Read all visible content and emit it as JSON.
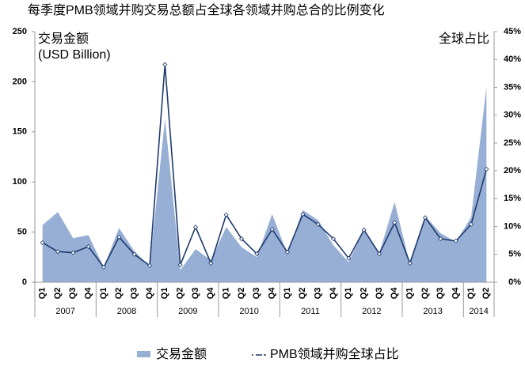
{
  "chart_data": {
    "type": "area-line",
    "title": "每季度PMB领域并购交易总额占全球各领域并购总合的比例变化",
    "y_label": [
      "交易金额",
      "(USD Billion)"
    ],
    "y2_label": "全球占比",
    "groups": [
      {
        "label": "2007",
        "categories": [
          "Q1",
          "Q2",
          "Q3",
          "Q4"
        ]
      },
      {
        "label": "2008",
        "categories": [
          "Q1",
          "Q2",
          "Q3",
          "Q4"
        ]
      },
      {
        "label": "2009",
        "categories": [
          "Q1",
          "Q2",
          "Q3",
          "Q4"
        ]
      },
      {
        "label": "2010",
        "categories": [
          "Q1",
          "Q2",
          "Q3",
          "Q4"
        ]
      },
      {
        "label": "2011",
        "categories": [
          "Q1",
          "Q2",
          "Q3",
          "Q4"
        ]
      },
      {
        "label": "2012",
        "categories": [
          "Q1",
          "Q2",
          "Q3",
          "Q4"
        ]
      },
      {
        "label": "2013",
        "categories": [
          "Q1",
          "Q2",
          "Q3",
          "Q4"
        ]
      },
      {
        "label": "2014",
        "categories": [
          "Q1",
          "Q2"
        ]
      }
    ],
    "series": [
      {
        "name": "交易金额",
        "type": "area",
        "color": "#97afd4",
        "values": [
          57,
          70,
          44,
          47,
          15,
          54,
          31,
          16,
          163,
          12,
          33,
          22,
          55,
          35,
          25,
          68,
          28,
          72,
          62,
          37,
          20,
          53,
          29,
          80,
          18,
          66,
          49,
          40,
          65,
          195
        ]
      },
      {
        "name": "PMB领域并购全球占比",
        "type": "line",
        "axis": "y2",
        "color": "#1f3a6e",
        "values": [
          7.1,
          5.5,
          5.3,
          6.4,
          2.7,
          8.1,
          5.0,
          3.0,
          39.1,
          3.1,
          9.9,
          3.4,
          12.1,
          7.8,
          5.1,
          9.5,
          5.4,
          12.2,
          10.4,
          7.8,
          4.3,
          9.4,
          5.1,
          10.7,
          3.4,
          11.6,
          7.8,
          7.4,
          10.4,
          20.3
        ]
      }
    ],
    "ylim": [
      0,
      250
    ],
    "yticks": [
      0,
      50,
      100,
      150,
      200,
      250
    ],
    "y2lim": [
      0,
      45
    ],
    "y2ticks": [
      {
        "value": 0,
        "label": "0%"
      },
      {
        "value": 5,
        "label": "5%"
      },
      {
        "value": 10,
        "label": "10%"
      },
      {
        "value": 15,
        "label": "15%"
      },
      {
        "value": 20,
        "label": "20%"
      },
      {
        "value": 25,
        "label": "25%"
      },
      {
        "value": 30,
        "label": "30%"
      },
      {
        "value": 35,
        "label": "35%"
      },
      {
        "value": 40,
        "label": "40%"
      },
      {
        "value": 45,
        "label": "45%"
      }
    ]
  }
}
